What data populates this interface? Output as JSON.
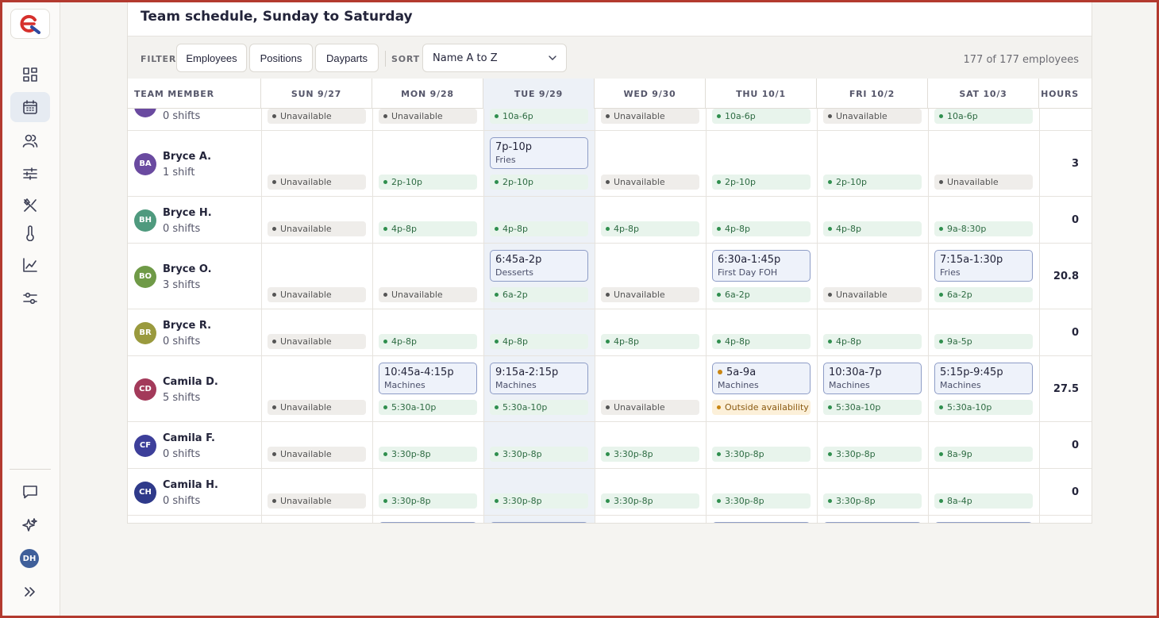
{
  "brand": {
    "logo_icon": "brand-logo-icon",
    "accent": "#d6302c"
  },
  "sidebar": {
    "items": [
      {
        "name": "dashboard-icon"
      },
      {
        "name": "calendar-icon",
        "active": true
      },
      {
        "name": "people-icon"
      },
      {
        "name": "sliders-icon"
      },
      {
        "name": "utensils-icon"
      },
      {
        "name": "thermometer-icon"
      },
      {
        "name": "chart-icon"
      },
      {
        "name": "settings-icon"
      }
    ],
    "bottom": {
      "message_icon": "message-icon",
      "sparkle_icon": "sparkle-icon",
      "avatar_initials": "DH",
      "expand_icon": "expand-icon"
    }
  },
  "page": {
    "title": "Team schedule, Sunday to Saturday"
  },
  "toolbar": {
    "filter_label": "FILTER",
    "filters": [
      "Employees",
      "Positions",
      "Dayparts"
    ],
    "sort_label": "SORT",
    "sort_value": "Name A to Z",
    "count": "177 of 177 employees"
  },
  "columns": {
    "member": "TEAM MEMBER",
    "days": [
      "SUN 9/27",
      "MON 9/28",
      "TUE 9/29",
      "WED 9/30",
      "THU 10/1",
      "FRI 10/2",
      "SAT 10/3"
    ],
    "hours": "HOURS"
  },
  "rows": [
    {
      "initials": "AE",
      "name": "",
      "shifts": "0 shifts",
      "color": "#6a4aa0",
      "hours": "0",
      "days": [
        {
          "pill": "un",
          "text": "Unavailable"
        },
        {
          "pill": "un",
          "text": "Unavailable"
        },
        {
          "pill": "av",
          "text": "10a-6p"
        },
        {
          "pill": "un",
          "text": "Unavailable"
        },
        {
          "pill": "av",
          "text": "10a-6p"
        },
        {
          "pill": "un",
          "text": "Unavailable"
        },
        {
          "pill": "av",
          "text": "10a-6p"
        }
      ]
    },
    {
      "initials": "BA",
      "name": "Bryce A.",
      "shifts": "1 shift",
      "color": "#6a4aa0",
      "hours": "3",
      "days": [
        {
          "pill": "un",
          "text": "Unavailable"
        },
        {
          "pill": "av",
          "text": "2p-10p"
        },
        {
          "pill": "av",
          "text": "2p-10p",
          "shift": {
            "time": "7p-10p",
            "position": "Fries"
          }
        },
        {
          "pill": "un",
          "text": "Unavailable"
        },
        {
          "pill": "av",
          "text": "2p-10p"
        },
        {
          "pill": "av",
          "text": "2p-10p"
        },
        {
          "pill": "un",
          "text": "Unavailable"
        }
      ]
    },
    {
      "initials": "BH",
      "name": "Bryce H.",
      "shifts": "0 shifts",
      "color": "#4f9a7e",
      "hours": "0",
      "days": [
        {
          "pill": "un",
          "text": "Unavailable"
        },
        {
          "pill": "av",
          "text": "4p-8p"
        },
        {
          "pill": "av",
          "text": "4p-8p"
        },
        {
          "pill": "av",
          "text": "4p-8p"
        },
        {
          "pill": "av",
          "text": "4p-8p"
        },
        {
          "pill": "av",
          "text": "4p-8p"
        },
        {
          "pill": "av",
          "text": "9a-8:30p"
        }
      ]
    },
    {
      "initials": "BO",
      "name": "Bryce O.",
      "shifts": "3 shifts",
      "color": "#6f9a47",
      "hours": "20.8",
      "days": [
        {
          "pill": "un",
          "text": "Unavailable"
        },
        {
          "pill": "un",
          "text": "Unavailable"
        },
        {
          "pill": "av",
          "text": "6a-2p",
          "shift": {
            "time": "6:45a-2p",
            "position": "Desserts"
          }
        },
        {
          "pill": "un",
          "text": "Unavailable"
        },
        {
          "pill": "av",
          "text": "6a-2p",
          "shift": {
            "time": "6:30a-1:45p",
            "position": "First Day FOH"
          }
        },
        {
          "pill": "un",
          "text": "Unavailable"
        },
        {
          "pill": "av",
          "text": "6a-2p",
          "shift": {
            "time": "7:15a-1:30p",
            "position": "Fries"
          }
        }
      ]
    },
    {
      "initials": "BR",
      "name": "Bryce R.",
      "shifts": "0 shifts",
      "color": "#9a9a3e",
      "hours": "0",
      "days": [
        {
          "pill": "un",
          "text": "Unavailable"
        },
        {
          "pill": "av",
          "text": "4p-8p"
        },
        {
          "pill": "av",
          "text": "4p-8p"
        },
        {
          "pill": "av",
          "text": "4p-8p"
        },
        {
          "pill": "av",
          "text": "4p-8p"
        },
        {
          "pill": "av",
          "text": "4p-8p"
        },
        {
          "pill": "av",
          "text": "9a-5p"
        }
      ]
    },
    {
      "initials": "CD",
      "name": "Camila D.",
      "shifts": "5 shifts",
      "color": "#a33a5a",
      "hours": "27.5",
      "days": [
        {
          "pill": "un",
          "text": "Unavailable"
        },
        {
          "pill": "av",
          "text": "5:30a-10p",
          "shift": {
            "time": "10:45a-4:15p",
            "position": "Machines"
          }
        },
        {
          "pill": "av",
          "text": "5:30a-10p",
          "shift": {
            "time": "9:15a-2:15p",
            "position": "Machines"
          }
        },
        {
          "pill": "un",
          "text": "Unavailable"
        },
        {
          "pill": "out",
          "text": "Outside availability",
          "shift": {
            "time": "5a-9a",
            "position": "Machines",
            "warn": true
          }
        },
        {
          "pill": "av",
          "text": "5:30a-10p",
          "shift": {
            "time": "10:30a-7p",
            "position": "Machines"
          }
        },
        {
          "pill": "av",
          "text": "5:30a-10p",
          "shift": {
            "time": "5:15p-9:45p",
            "position": "Machines"
          }
        }
      ]
    },
    {
      "initials": "CF",
      "name": "Camila F.",
      "shifts": "0 shifts",
      "color": "#3d3f9a",
      "hours": "0",
      "days": [
        {
          "pill": "un",
          "text": "Unavailable"
        },
        {
          "pill": "av",
          "text": "3:30p-8p"
        },
        {
          "pill": "av",
          "text": "3:30p-8p"
        },
        {
          "pill": "av",
          "text": "3:30p-8p"
        },
        {
          "pill": "av",
          "text": "3:30p-8p"
        },
        {
          "pill": "av",
          "text": "3:30p-8p"
        },
        {
          "pill": "av",
          "text": "8a-9p"
        }
      ]
    },
    {
      "initials": "CH",
      "name": "Camila H.",
      "shifts": "0 shifts",
      "color": "#2f3a8a",
      "hours": "0",
      "days": [
        {
          "pill": "un",
          "text": "Unavailable"
        },
        {
          "pill": "av",
          "text": "3:30p-8p"
        },
        {
          "pill": "av",
          "text": "3:30p-8p"
        },
        {
          "pill": "av",
          "text": "3:30p-8p"
        },
        {
          "pill": "av",
          "text": "3:30p-8p"
        },
        {
          "pill": "av",
          "text": "3:30p-8p"
        },
        {
          "pill": "av",
          "text": "8a-4p"
        }
      ]
    }
  ]
}
